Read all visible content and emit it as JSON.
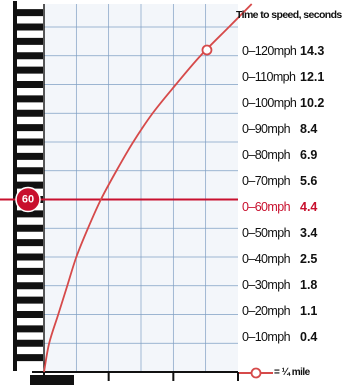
{
  "chart_data": {
    "type": "line",
    "title": "Time to speed, seconds",
    "marked_speed_label": "60",
    "legend_label": "= ¼ mile",
    "rows": [
      {
        "label": "0–120mph",
        "value": "14.3"
      },
      {
        "label": "0–110mph",
        "value": "12.1"
      },
      {
        "label": "0–100mph",
        "value": "10.2"
      },
      {
        "label": "0–90mph",
        "value": "8.4"
      },
      {
        "label": "0–80mph",
        "value": "6.9"
      },
      {
        "label": "0–70mph",
        "value": "5.6"
      },
      {
        "label": "0–60mph",
        "value": "4.4"
      },
      {
        "label": "0–50mph",
        "value": "3.4"
      },
      {
        "label": "0–40mph",
        "value": "2.5"
      },
      {
        "label": "0–30mph",
        "value": "1.8"
      },
      {
        "label": "0–20mph",
        "value": "1.1"
      },
      {
        "label": "0–10mph",
        "value": "0.4"
      }
    ],
    "highlight_speed": 60,
    "series": [
      {
        "x": [
          0,
          0.4,
          1.1,
          1.8,
          2.5,
          3.4,
          4.4,
          5.6,
          6.9,
          8.4,
          10.2,
          12.1,
          14.3
        ],
        "y": [
          0,
          10,
          20,
          30,
          40,
          50,
          60,
          70,
          80,
          90,
          100,
          110,
          120
        ]
      }
    ],
    "quarter_mile_marker": {
      "x": 12.6,
      "y": 112
    },
    "grid": true,
    "colors": {
      "curve": "#d64a4a",
      "highlight": "#c8102e",
      "grid": "#7f9fc3",
      "panel": "#f3f6fa",
      "ruler": "#111111"
    }
  }
}
